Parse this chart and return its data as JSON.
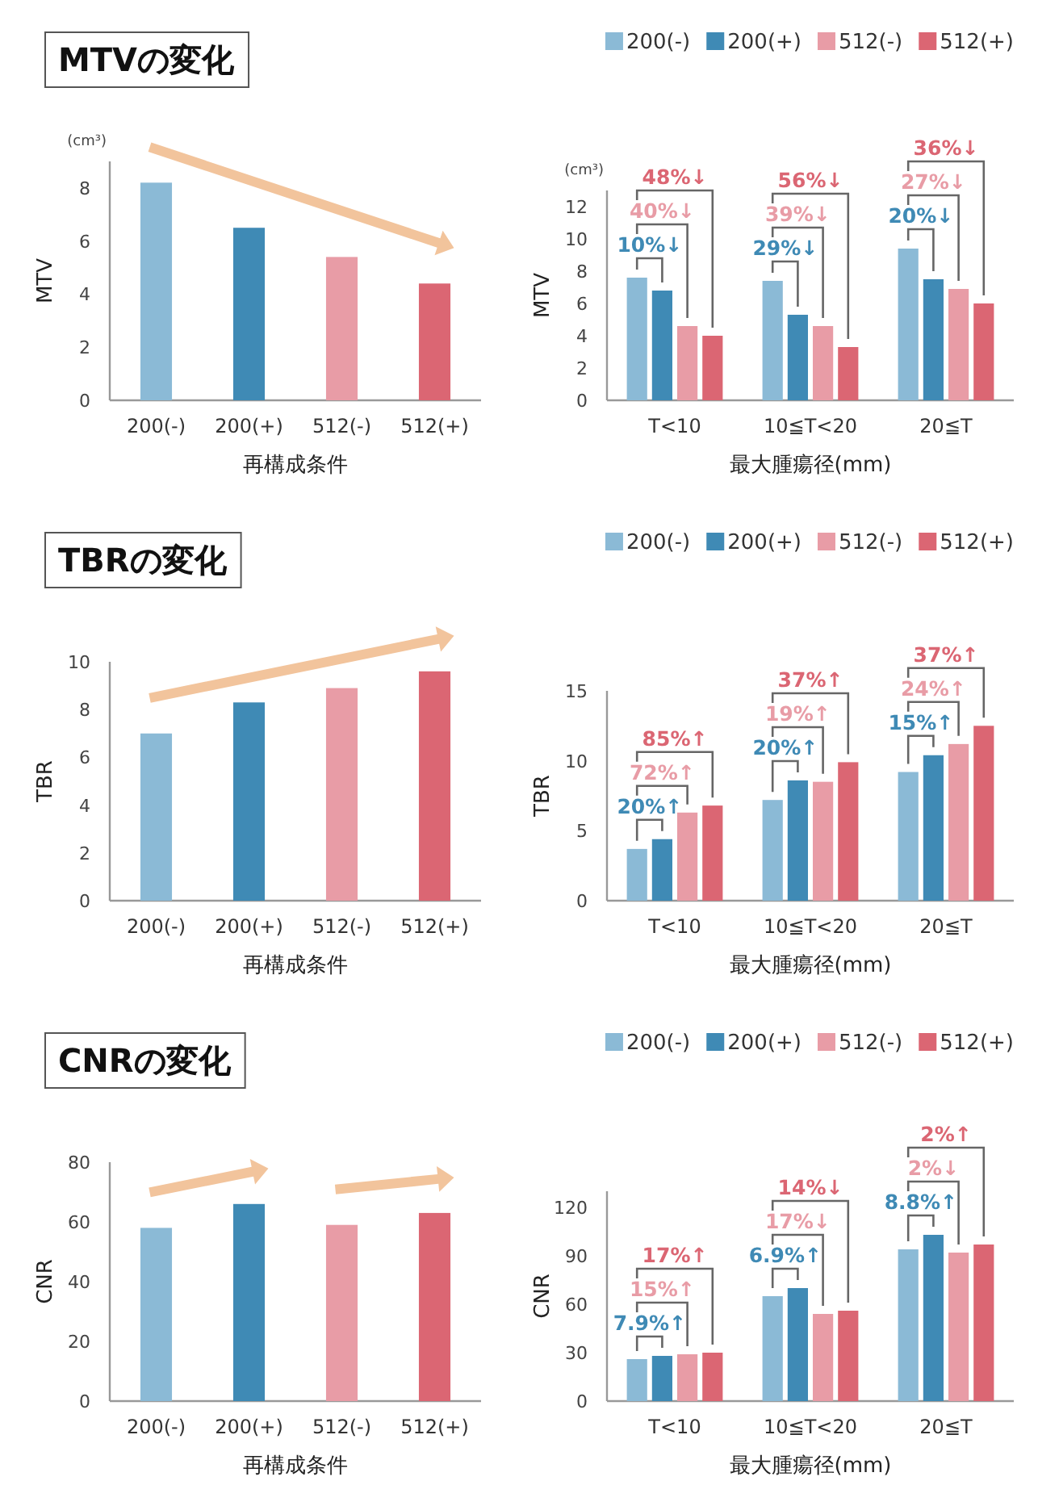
{
  "chart_data": [
    {
      "type": "bar",
      "title": "MTVの変化",
      "xlabel": "再構成条件",
      "ylabel": "MTV",
      "categories": [
        "200(-)",
        "200(+)",
        "512(-)",
        "512(+)"
      ],
      "values": [
        8.2,
        6.5,
        5.4,
        4.4
      ],
      "colors": [
        "#8bbad6",
        "#3f8ab5",
        "#e89ca6",
        "#db6673"
      ],
      "ylim": [
        0,
        9
      ],
      "yticks": [
        0,
        2,
        4,
        6,
        8
      ],
      "annotations": [
        "(cm³)"
      ]
    },
    {
      "type": "bar",
      "xlabel": "最大腫瘍径(mm)",
      "ylabel": "MTV",
      "categories": [
        "T<10",
        "10≦T<20",
        "20≦T"
      ],
      "legend": "top right",
      "series": [
        {
          "name": "200(-)",
          "color": "#8bbad6",
          "values": [
            7.6,
            7.4,
            9.4
          ]
        },
        {
          "name": "200(+)",
          "color": "#3f8ab5",
          "values": [
            6.8,
            5.3,
            7.5
          ]
        },
        {
          "name": "512(-)",
          "color": "#e89ca6",
          "values": [
            4.6,
            4.6,
            6.9
          ]
        },
        {
          "name": "512(+)",
          "color": "#db6673",
          "values": [
            4.0,
            3.3,
            6.0
          ]
        }
      ],
      "ylim": [
        0,
        13
      ],
      "yticks": [
        0,
        2,
        4,
        6,
        8,
        10,
        12
      ],
      "annotations": [
        "(cm³)",
        "10%↓",
        "40%↓",
        "48%↓",
        "29%↓",
        "39%↓",
        "56%↓",
        "20%↓",
        "27%↓",
        "36%↓"
      ]
    },
    {
      "type": "bar",
      "title": "TBRの変化",
      "xlabel": "再構成条件",
      "ylabel": "TBR",
      "categories": [
        "200(-)",
        "200(+)",
        "512(-)",
        "512(+)"
      ],
      "values": [
        7.0,
        8.3,
        8.9,
        9.6
      ],
      "colors": [
        "#8bbad6",
        "#3f8ab5",
        "#e89ca6",
        "#db6673"
      ],
      "ylim": [
        0,
        10
      ],
      "yticks": [
        0,
        2,
        4,
        6,
        8,
        10
      ]
    },
    {
      "type": "bar",
      "xlabel": "最大腫瘍径(mm)",
      "ylabel": "TBR",
      "categories": [
        "T<10",
        "10≦T<20",
        "20≦T"
      ],
      "legend": "top right",
      "series": [
        {
          "name": "200(-)",
          "color": "#8bbad6",
          "values": [
            3.7,
            7.2,
            9.2
          ]
        },
        {
          "name": "200(+)",
          "color": "#3f8ab5",
          "values": [
            4.4,
            8.6,
            10.4
          ]
        },
        {
          "name": "512(-)",
          "color": "#e89ca6",
          "values": [
            6.3,
            8.5,
            11.2
          ]
        },
        {
          "name": "512(+)",
          "color": "#db6673",
          "values": [
            6.8,
            9.9,
            12.5
          ]
        }
      ],
      "ylim": [
        0,
        15
      ],
      "yticks": [
        0,
        5,
        10,
        15
      ],
      "annotations": [
        "20%↑",
        "72%↑",
        "85%↑",
        "20%↑",
        "19%↑",
        "37%↑",
        "15%↑",
        "24%↑",
        "37%↑"
      ]
    },
    {
      "type": "bar",
      "title": "CNRの変化",
      "xlabel": "再構成条件",
      "ylabel": "CNR",
      "categories": [
        "200(-)",
        "200(+)",
        "512(-)",
        "512(+)"
      ],
      "values": [
        58,
        66,
        59,
        63
      ],
      "colors": [
        "#8bbad6",
        "#3f8ab5",
        "#e89ca6",
        "#db6673"
      ],
      "ylim": [
        0,
        80
      ],
      "yticks": [
        0,
        20,
        40,
        60,
        80
      ]
    },
    {
      "type": "bar",
      "xlabel": "最大腫瘍径(mm)",
      "ylabel": "CNR",
      "categories": [
        "T<10",
        "10≦T<20",
        "20≦T"
      ],
      "legend": "top right",
      "series": [
        {
          "name": "200(-)",
          "color": "#8bbad6",
          "values": [
            26,
            65,
            94
          ]
        },
        {
          "name": "200(+)",
          "color": "#3f8ab5",
          "values": [
            28,
            70,
            103
          ]
        },
        {
          "name": "512(-)",
          "color": "#e89ca6",
          "values": [
            29,
            54,
            92
          ]
        },
        {
          "name": "512(+)",
          "color": "#db6673",
          "values": [
            30,
            56,
            97
          ]
        }
      ],
      "ylim": [
        0,
        130
      ],
      "yticks": [
        0,
        30,
        60,
        90,
        120
      ],
      "annotations": [
        "7.9%↑",
        "15%↑",
        "17%↑",
        "6.9%↑",
        "17%↓",
        "14%↓",
        "8.8%↑",
        "2%↓",
        "2%↑"
      ]
    }
  ]
}
